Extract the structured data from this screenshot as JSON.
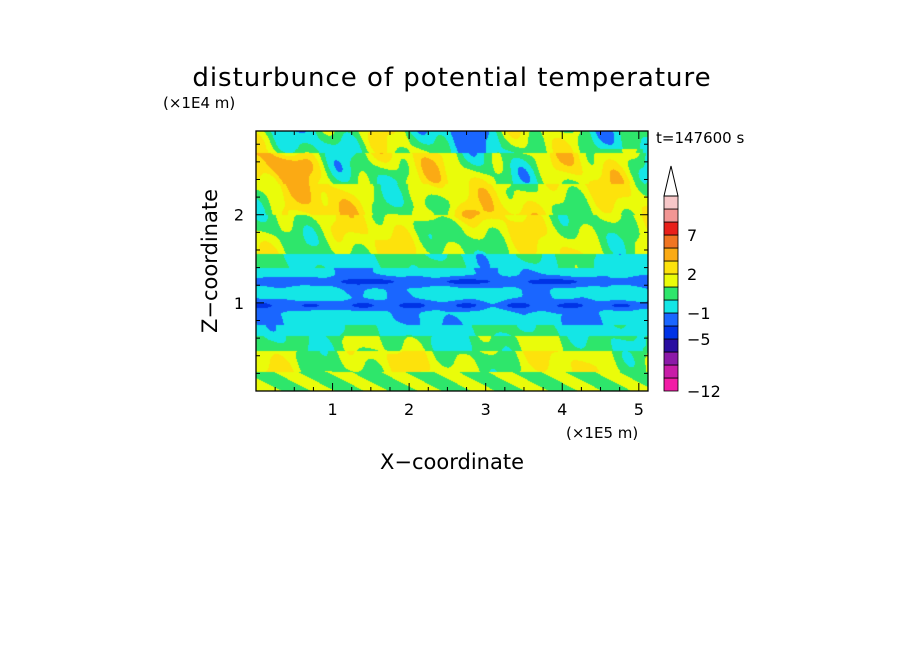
{
  "chart_data": {
    "type": "heatmap",
    "title": "disturbunce of potential temperature",
    "xlabel": "X−coordinate",
    "ylabel": "Z−coordinate",
    "x_scale_label": "(×1E5 m)",
    "y_scale_label": "(×1E4 m)",
    "time_label": "t=147600 s",
    "xlim": [
      0,
      5.12
    ],
    "ylim": [
      0,
      2.95
    ],
    "x_ticks": [
      "1",
      "2",
      "3",
      "4",
      "5"
    ],
    "y_ticks": [
      "1",
      "2"
    ],
    "colorbar": {
      "levels": [
        -12,
        -11,
        -9,
        -7,
        -5,
        -3,
        -1,
        0,
        1,
        2,
        3,
        5,
        7,
        9,
        11
      ],
      "colors": [
        "#f21ca6",
        "#c81da8",
        "#8c1aa8",
        "#2a0ea0",
        "#0033e6",
        "#1a66ff",
        "#14e6e6",
        "#2ee66b",
        "#eafc0a",
        "#fde20c",
        "#fbaa14",
        "#f07522",
        "#e8201a",
        "#f29694",
        "#f7c7c8"
      ],
      "tick_labels": [
        "7",
        "2",
        "−1",
        "−5",
        "−12"
      ],
      "tick_values": [
        7,
        2,
        -1,
        -5,
        -12
      ],
      "extend": "max"
    }
  }
}
